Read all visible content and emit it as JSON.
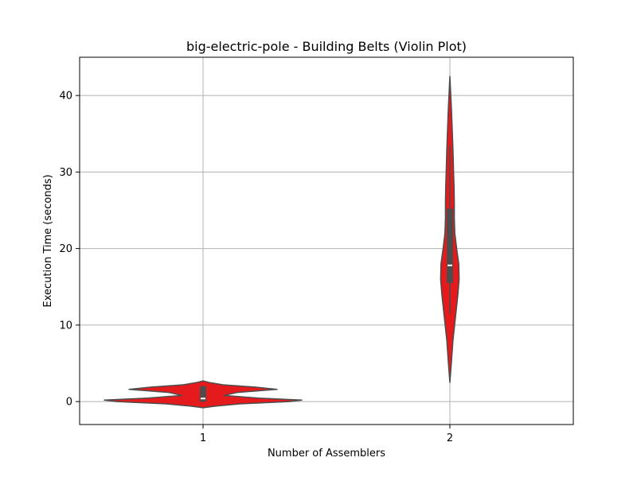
{
  "chart_data": {
    "type": "violin",
    "title": "big-electric-pole - Building Belts (Violin Plot)",
    "xlabel": "Number of Assemblers",
    "ylabel": "Execution Time (seconds)",
    "categories": [
      "1",
      "2"
    ],
    "ylim": [
      -3,
      45
    ],
    "yticks": [
      0,
      10,
      20,
      30,
      40
    ],
    "grid": true,
    "colors": {
      "violin_fill": "#e41a1c",
      "violin_edge": "#4d4d4d",
      "box": "#4d4d4d",
      "median": "#ffffff",
      "grid": "#b0b0b0",
      "frame": "#000000"
    },
    "violins": [
      {
        "category": "1",
        "median": 0.4,
        "q1": 0.0,
        "q3": 2.0,
        "whisker_low": -0.1,
        "whisker_high": 2.1,
        "density": [
          {
            "y": -0.8,
            "w": 0.0
          },
          {
            "y": -0.6,
            "w": 0.1
          },
          {
            "y": -0.3,
            "w": 0.3
          },
          {
            "y": 0.0,
            "w": 0.7
          },
          {
            "y": 0.2,
            "w": 0.8
          },
          {
            "y": 0.45,
            "w": 0.45
          },
          {
            "y": 0.8,
            "w": 0.17
          },
          {
            "y": 1.2,
            "w": 0.28
          },
          {
            "y": 1.6,
            "w": 0.6
          },
          {
            "y": 1.9,
            "w": 0.42
          },
          {
            "y": 2.2,
            "w": 0.16
          },
          {
            "y": 2.5,
            "w": 0.05
          },
          {
            "y": 2.7,
            "w": 0.0
          }
        ]
      },
      {
        "category": "2",
        "median": 17.8,
        "q1": 15.5,
        "q3": 25.2,
        "whisker_low": 11.5,
        "whisker_high": 33.5,
        "density": [
          {
            "y": 2.5,
            "w": 0.0
          },
          {
            "y": 5.0,
            "w": 0.012
          },
          {
            "y": 8.0,
            "w": 0.025
          },
          {
            "y": 11.0,
            "w": 0.045
          },
          {
            "y": 14.0,
            "w": 0.065
          },
          {
            "y": 16.0,
            "w": 0.075
          },
          {
            "y": 18.0,
            "w": 0.072
          },
          {
            "y": 20.0,
            "w": 0.055
          },
          {
            "y": 22.0,
            "w": 0.04
          },
          {
            "y": 24.0,
            "w": 0.036
          },
          {
            "y": 26.0,
            "w": 0.036
          },
          {
            "y": 28.0,
            "w": 0.034
          },
          {
            "y": 30.0,
            "w": 0.03
          },
          {
            "y": 33.0,
            "w": 0.025
          },
          {
            "y": 36.0,
            "w": 0.018
          },
          {
            "y": 38.5,
            "w": 0.012
          },
          {
            "y": 40.5,
            "w": 0.006
          },
          {
            "y": 42.5,
            "w": 0.0
          }
        ]
      }
    ]
  }
}
